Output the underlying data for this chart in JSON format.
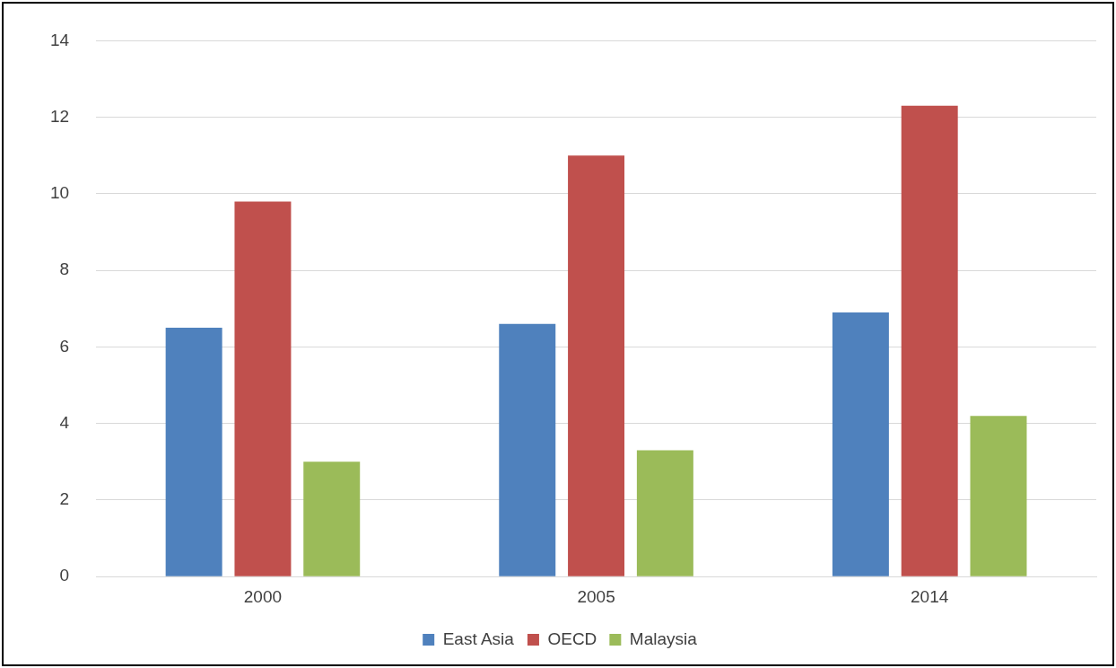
{
  "chart_data": {
    "type": "bar",
    "categories": [
      "2000",
      "2005",
      "2014"
    ],
    "series": [
      {
        "name": "East Asia",
        "color": "#4f81bd",
        "values": [
          6.5,
          6.6,
          6.9
        ]
      },
      {
        "name": "OECD",
        "color": "#c0504d",
        "values": [
          9.8,
          11.0,
          12.3
        ]
      },
      {
        "name": "Malaysia",
        "color": "#9bbb59",
        "values": [
          3.0,
          3.3,
          4.2
        ]
      }
    ],
    "ylim": [
      0,
      14
    ],
    "yticks": [
      0,
      2,
      4,
      6,
      8,
      10,
      12,
      14
    ],
    "grid": "y",
    "legend": "bottom"
  }
}
